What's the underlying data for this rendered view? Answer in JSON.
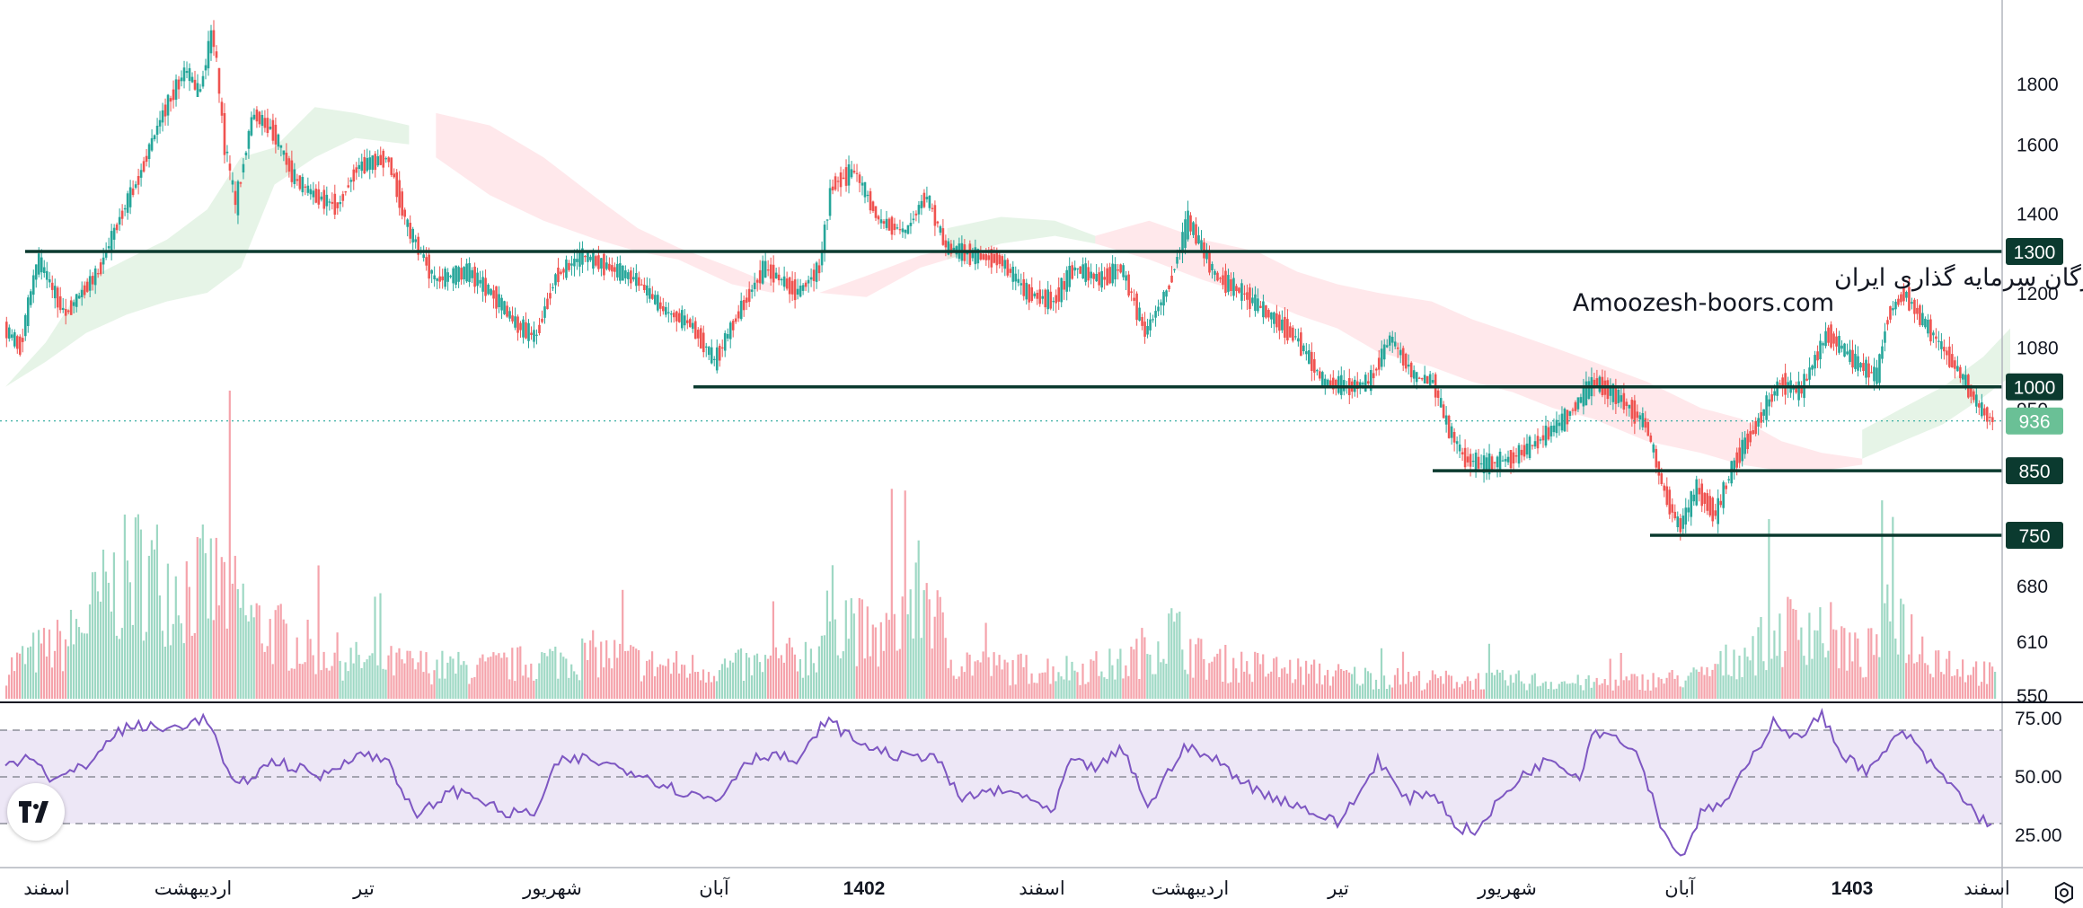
{
  "chart_data": {
    "type": "candlestick",
    "price_axis": {
      "ticks": [
        "1800",
        "1600",
        "1400",
        "1200",
        "1080",
        "950",
        "680",
        "610",
        "550"
      ],
      "scale": "log"
    },
    "rsi_axis": {
      "ticks": [
        "75.00",
        "50.00",
        "25.00"
      ],
      "levels": [
        70,
        50,
        30
      ]
    },
    "time_axis": {
      "labels": [
        "اسفند",
        "اردیبهشت",
        "تیر",
        "شهریور",
        "آبان",
        "1402",
        "اسفند",
        "اردیبهشت",
        "تیر",
        "شهریور",
        "آبان",
        "1403",
        "اسفند"
      ],
      "bold": [
        false,
        false,
        false,
        false,
        false,
        true,
        false,
        false,
        false,
        false,
        false,
        true,
        false
      ]
    },
    "horizontal_levels": [
      {
        "label": "1300",
        "value": 1300
      },
      {
        "label": "1000",
        "value": 1000
      },
      {
        "label": "850",
        "value": 850
      },
      {
        "label": "750",
        "value": 750
      }
    ],
    "last_price": {
      "label": "936",
      "value": 936
    },
    "price_path": [
      [
        0,
        1120
      ],
      [
        12,
        1080
      ],
      [
        25,
        1280
      ],
      [
        45,
        1150
      ],
      [
        70,
        1250
      ],
      [
        85,
        1380
      ],
      [
        100,
        1500
      ],
      [
        118,
        1700
      ],
      [
        135,
        1850
      ],
      [
        145,
        1760
      ],
      [
        155,
        2000
      ],
      [
        163,
        1620
      ],
      [
        172,
        1420
      ],
      [
        185,
        1700
      ],
      [
        200,
        1640
      ],
      [
        215,
        1500
      ],
      [
        230,
        1450
      ],
      [
        248,
        1420
      ],
      [
        262,
        1530
      ],
      [
        285,
        1560
      ],
      [
        300,
        1360
      ],
      [
        320,
        1230
      ],
      [
        345,
        1250
      ],
      [
        365,
        1190
      ],
      [
        380,
        1130
      ],
      [
        395,
        1100
      ],
      [
        410,
        1240
      ],
      [
        430,
        1290
      ],
      [
        450,
        1260
      ],
      [
        470,
        1230
      ],
      [
        490,
        1160
      ],
      [
        510,
        1130
      ],
      [
        528,
        1050
      ],
      [
        545,
        1150
      ],
      [
        565,
        1260
      ],
      [
        590,
        1200
      ],
      [
        606,
        1260
      ],
      [
        615,
        1480
      ],
      [
        632,
        1520
      ],
      [
        650,
        1380
      ],
      [
        670,
        1350
      ],
      [
        685,
        1450
      ],
      [
        700,
        1310
      ],
      [
        720,
        1290
      ],
      [
        740,
        1280
      ],
      [
        760,
        1200
      ],
      [
        780,
        1180
      ],
      [
        795,
        1260
      ],
      [
        815,
        1230
      ],
      [
        830,
        1260
      ],
      [
        848,
        1110
      ],
      [
        865,
        1210
      ],
      [
        880,
        1380
      ],
      [
        900,
        1240
      ],
      [
        920,
        1200
      ],
      [
        940,
        1150
      ],
      [
        960,
        1100
      ],
      [
        980,
        1010
      ],
      [
        1000,
        1000
      ],
      [
        1015,
        1010
      ],
      [
        1030,
        1100
      ],
      [
        1048,
        1020
      ],
      [
        1062,
        1010
      ],
      [
        1072,
        930
      ],
      [
        1085,
        870
      ],
      [
        1100,
        860
      ],
      [
        1120,
        870
      ],
      [
        1140,
        900
      ],
      [
        1160,
        940
      ],
      [
        1182,
        1010
      ],
      [
        1200,
        980
      ],
      [
        1220,
        930
      ],
      [
        1233,
        820
      ],
      [
        1245,
        760
      ],
      [
        1258,
        820
      ],
      [
        1272,
        780
      ],
      [
        1285,
        860
      ],
      [
        1300,
        920
      ],
      [
        1320,
        1010
      ],
      [
        1335,
        990
      ],
      [
        1355,
        1110
      ],
      [
        1375,
        1050
      ],
      [
        1392,
        1020
      ],
      [
        1400,
        1150
      ],
      [
        1412,
        1200
      ],
      [
        1425,
        1140
      ],
      [
        1440,
        1080
      ],
      [
        1455,
        1020
      ],
      [
        1468,
        960
      ],
      [
        1478,
        936
      ]
    ],
    "volume_profile": [
      [
        0,
        8
      ],
      [
        20,
        12
      ],
      [
        45,
        15
      ],
      [
        75,
        28
      ],
      [
        100,
        35
      ],
      [
        115,
        32
      ],
      [
        130,
        30
      ],
      [
        160,
        30
      ],
      [
        185,
        20
      ],
      [
        220,
        14
      ],
      [
        260,
        10
      ],
      [
        300,
        9
      ],
      [
        350,
        8
      ],
      [
        400,
        10
      ],
      [
        440,
        12
      ],
      [
        480,
        9
      ],
      [
        520,
        8
      ],
      [
        560,
        9
      ],
      [
        600,
        12
      ],
      [
        615,
        24
      ],
      [
        625,
        22
      ],
      [
        645,
        14
      ],
      [
        685,
        30
      ],
      [
        700,
        11
      ],
      [
        740,
        8
      ],
      [
        790,
        8
      ],
      [
        830,
        9
      ],
      [
        866,
        18
      ],
      [
        890,
        10
      ],
      [
        940,
        8
      ],
      [
        1000,
        6
      ],
      [
        1060,
        5
      ],
      [
        1120,
        5
      ],
      [
        1180,
        4
      ],
      [
        1230,
        5
      ],
      [
        1260,
        6
      ],
      [
        1280,
        10
      ],
      [
        1300,
        14
      ],
      [
        1320,
        18
      ],
      [
        1340,
        20
      ],
      [
        1360,
        16
      ],
      [
        1380,
        10
      ],
      [
        1405,
        24
      ],
      [
        1420,
        14
      ],
      [
        1450,
        9
      ],
      [
        1478,
        6
      ]
    ],
    "rsi_path": [
      [
        0,
        55
      ],
      [
        20,
        60
      ],
      [
        35,
        48
      ],
      [
        60,
        55
      ],
      [
        85,
        70
      ],
      [
        100,
        72
      ],
      [
        118,
        70
      ],
      [
        135,
        73
      ],
      [
        150,
        75
      ],
      [
        170,
        45
      ],
      [
        200,
        57
      ],
      [
        235,
        50
      ],
      [
        260,
        60
      ],
      [
        285,
        57
      ],
      [
        305,
        32
      ],
      [
        330,
        44
      ],
      [
        350,
        42
      ],
      [
        370,
        34
      ],
      [
        395,
        35
      ],
      [
        410,
        56
      ],
      [
        430,
        58
      ],
      [
        450,
        55
      ],
      [
        470,
        52
      ],
      [
        500,
        44
      ],
      [
        530,
        40
      ],
      [
        550,
        57
      ],
      [
        570,
        60
      ],
      [
        590,
        56
      ],
      [
        610,
        75
      ],
      [
        630,
        66
      ],
      [
        650,
        61
      ],
      [
        670,
        58
      ],
      [
        690,
        60
      ],
      [
        710,
        40
      ],
      [
        730,
        44
      ],
      [
        760,
        42
      ],
      [
        778,
        33
      ],
      [
        790,
        56
      ],
      [
        812,
        54
      ],
      [
        830,
        62
      ],
      [
        850,
        37
      ],
      [
        875,
        63
      ],
      [
        900,
        57
      ],
      [
        930,
        44
      ],
      [
        960,
        38
      ],
      [
        990,
        30
      ],
      [
        1010,
        46
      ],
      [
        1020,
        58
      ],
      [
        1040,
        40
      ],
      [
        1060,
        44
      ],
      [
        1080,
        28
      ],
      [
        1095,
        27
      ],
      [
        1110,
        40
      ],
      [
        1130,
        52
      ],
      [
        1150,
        58
      ],
      [
        1170,
        50
      ],
      [
        1180,
        70
      ],
      [
        1200,
        67
      ],
      [
        1215,
        58
      ],
      [
        1230,
        30
      ],
      [
        1245,
        15
      ],
      [
        1260,
        34
      ],
      [
        1280,
        40
      ],
      [
        1300,
        60
      ],
      [
        1315,
        75
      ],
      [
        1330,
        66
      ],
      [
        1350,
        76
      ],
      [
        1365,
        60
      ],
      [
        1385,
        52
      ],
      [
        1410,
        70
      ],
      [
        1430,
        56
      ],
      [
        1450,
        44
      ],
      [
        1468,
        32
      ],
      [
        1478,
        30
      ]
    ],
    "ichimoku_cloud": [
      {
        "name": "green",
        "points": [
          [
            0,
            1000,
            1000
          ],
          [
            30,
            1050,
            1090
          ],
          [
            60,
            1110,
            1230
          ],
          [
            90,
            1150,
            1280
          ],
          [
            120,
            1180,
            1330
          ],
          [
            150,
            1200,
            1410
          ],
          [
            175,
            1260,
            1560
          ],
          [
            200,
            1480,
            1590
          ],
          [
            230,
            1560,
            1720
          ],
          [
            260,
            1620,
            1700
          ],
          [
            300,
            1600,
            1660
          ]
        ]
      },
      {
        "name": "red",
        "points": [
          [
            320,
            1700,
            1560
          ],
          [
            360,
            1660,
            1450
          ],
          [
            400,
            1560,
            1380
          ],
          [
            440,
            1440,
            1330
          ],
          [
            470,
            1360,
            1300
          ],
          [
            500,
            1310,
            1280
          ],
          [
            540,
            1260,
            1220
          ],
          [
            570,
            1220,
            1200
          ]
        ]
      },
      {
        "name": "red",
        "points": [
          [
            605,
            1200,
            1200
          ],
          [
            640,
            1190,
            1240
          ],
          [
            680,
            1260,
            1290
          ],
          [
            720,
            1300,
            1320
          ]
        ]
      },
      {
        "name": "green",
        "points": [
          [
            700,
            1280,
            1360
          ],
          [
            740,
            1320,
            1390
          ],
          [
            780,
            1340,
            1380
          ],
          [
            810,
            1320,
            1340
          ]
        ]
      },
      {
        "name": "red",
        "points": [
          [
            810,
            1340,
            1320
          ],
          [
            850,
            1380,
            1280
          ],
          [
            890,
            1330,
            1230
          ],
          [
            930,
            1300,
            1190
          ],
          [
            960,
            1250,
            1150
          ],
          [
            990,
            1220,
            1120
          ],
          [
            1020,
            1200,
            1070
          ],
          [
            1060,
            1180,
            1040
          ],
          [
            1090,
            1140,
            1010
          ],
          [
            1120,
            1110,
            990
          ],
          [
            1150,
            1080,
            960
          ],
          [
            1180,
            1050,
            940
          ],
          [
            1220,
            1010,
            900
          ],
          [
            1260,
            960,
            880
          ],
          [
            1290,
            940,
            860
          ],
          [
            1320,
            900,
            850
          ],
          [
            1350,
            880,
            850
          ],
          [
            1380,
            870,
            860
          ]
        ]
      },
      {
        "name": "green",
        "points": [
          [
            1380,
            920,
            870
          ],
          [
            1410,
            960,
            900
          ],
          [
            1440,
            1000,
            930
          ],
          [
            1470,
            1060,
            980
          ],
          [
            1490,
            1120,
            1020
          ]
        ]
      }
    ]
  },
  "watermark": {
    "line1": "انجمن خبرگان سرمایه گذاری ایران",
    "line2": "Amoozesh-boors.com"
  },
  "colors": {
    "up": "#26a69a",
    "down": "#ef5350",
    "level": "#0b3a2f",
    "rsi": "#7e57c2",
    "rsi_band": "#ede7f6",
    "price_tag": "#6ac096"
  },
  "icons": {
    "logo": "tradingview-logo-icon",
    "settings": "gear-icon"
  }
}
